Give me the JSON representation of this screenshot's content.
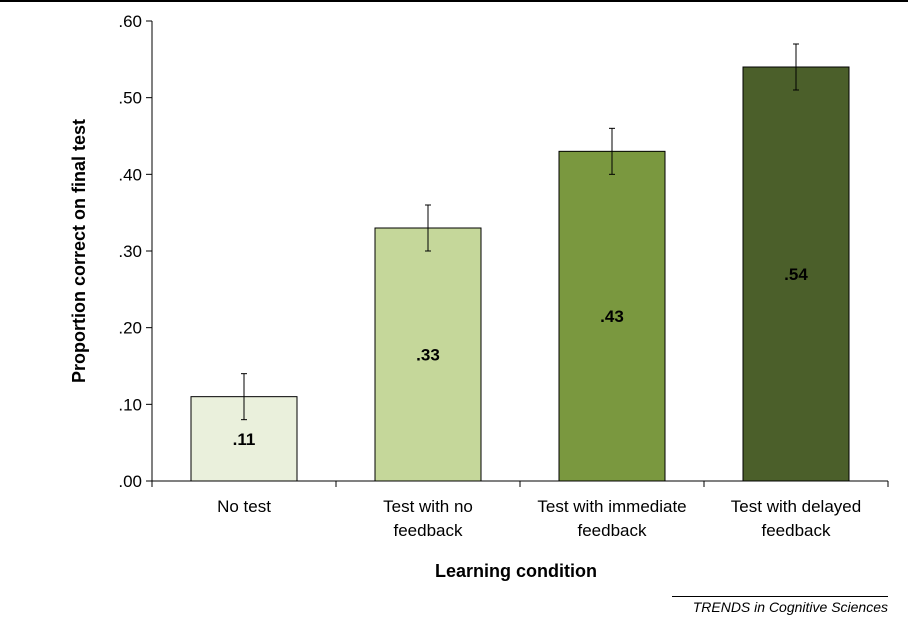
{
  "chart_data": {
    "type": "bar",
    "categories": [
      [
        "No test"
      ],
      [
        "Test with no",
        "feedback"
      ],
      [
        "Test with immediate",
        "feedback"
      ],
      [
        "Test with delayed",
        "feedback"
      ]
    ],
    "values": [
      0.11,
      0.33,
      0.43,
      0.54
    ],
    "value_labels": [
      ".11",
      ".33",
      ".43",
      ".54"
    ],
    "error_bars": [
      [
        0.08,
        0.14
      ],
      [
        0.3,
        0.36
      ],
      [
        0.4,
        0.46
      ],
      [
        0.51,
        0.57
      ]
    ],
    "bar_colors": [
      "#eaf0dc",
      "#c5d79a",
      "#7a983f",
      "#4b5f2a"
    ],
    "xlabel": "Learning condition",
    "ylabel": "Proportion correct on final test",
    "ylim": [
      0,
      0.6
    ],
    "yticks": [
      0,
      0.1,
      0.2,
      0.3,
      0.4,
      0.5,
      0.6
    ],
    "ytick_labels": [
      ".00",
      ".10",
      ".20",
      ".30",
      ".40",
      ".50",
      ".60"
    ],
    "grid": false,
    "legend": "none"
  },
  "source_note": "TRENDS in Cognitive Sciences"
}
